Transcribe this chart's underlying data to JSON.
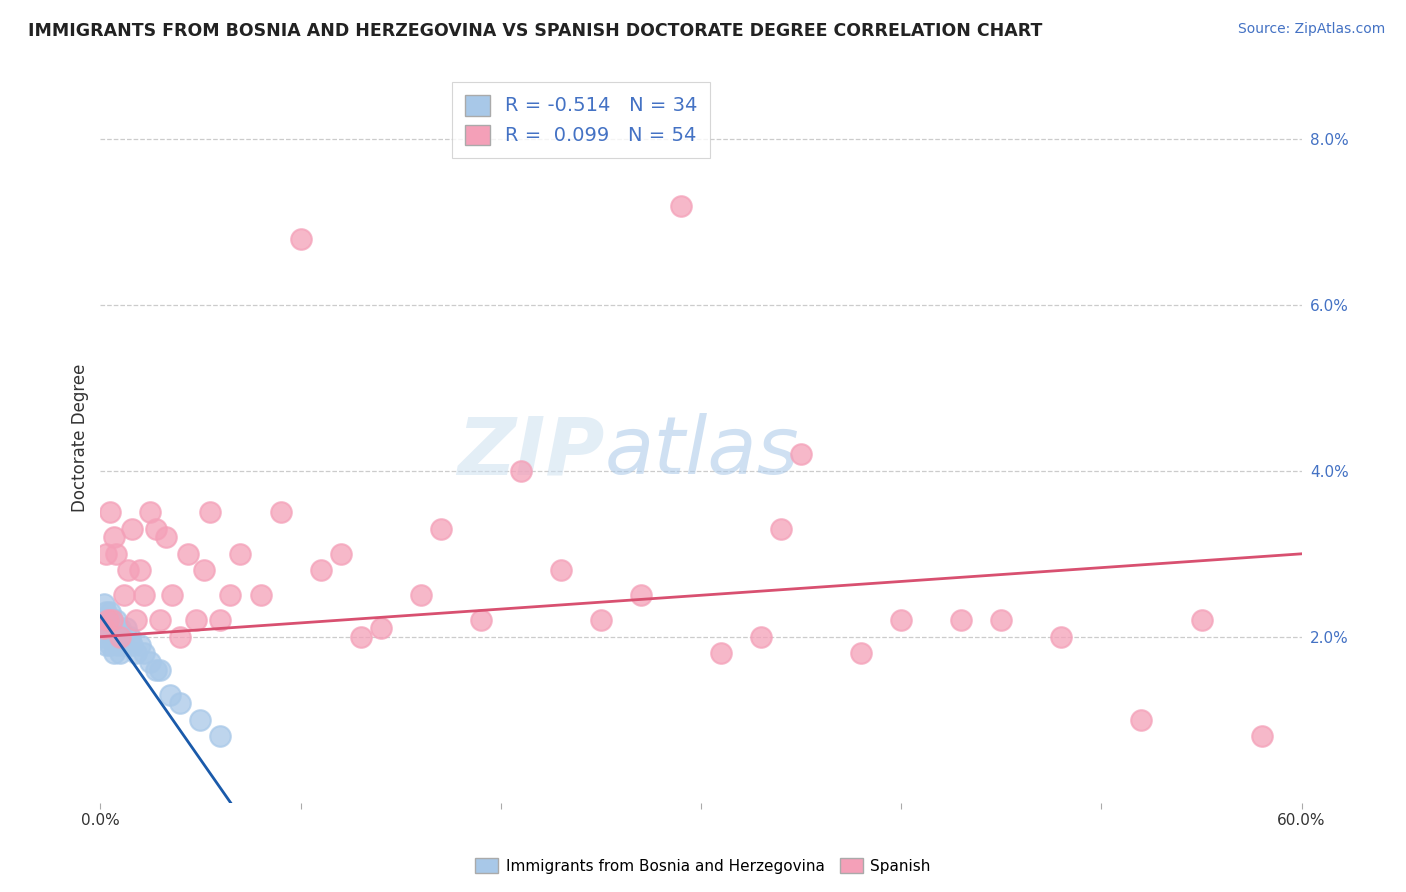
{
  "title": "IMMIGRANTS FROM BOSNIA AND HERZEGOVINA VS SPANISH DOCTORATE DEGREE CORRELATION CHART",
  "source": "Source: ZipAtlas.com",
  "ylabel": "Doctorate Degree",
  "xlim": [
    0.0,
    0.6
  ],
  "ylim": [
    0.0,
    0.088
  ],
  "color_blue": "#a8c8e8",
  "color_pink": "#f4a0b8",
  "line_blue": "#1a5aaa",
  "line_pink": "#d85070",
  "legend_r1": "R = -0.514",
  "legend_n1": "N = 34",
  "legend_r2": "R =  0.099",
  "legend_n2": "N = 54",
  "watermark_zip": "ZIP",
  "watermark_atlas": "atlas",
  "blue_x": [
    0.001,
    0.002,
    0.002,
    0.003,
    0.003,
    0.004,
    0.004,
    0.005,
    0.005,
    0.006,
    0.006,
    0.007,
    0.007,
    0.008,
    0.008,
    0.009,
    0.009,
    0.01,
    0.01,
    0.011,
    0.012,
    0.013,
    0.015,
    0.016,
    0.018,
    0.02,
    0.022,
    0.025,
    0.028,
    0.03,
    0.035,
    0.04,
    0.05,
    0.06
  ],
  "blue_y": [
    0.022,
    0.024,
    0.02,
    0.023,
    0.019,
    0.022,
    0.021,
    0.023,
    0.019,
    0.022,
    0.02,
    0.021,
    0.018,
    0.022,
    0.02,
    0.021,
    0.019,
    0.021,
    0.018,
    0.02,
    0.019,
    0.021,
    0.02,
    0.019,
    0.018,
    0.019,
    0.018,
    0.017,
    0.016,
    0.016,
    0.013,
    0.012,
    0.01,
    0.008
  ],
  "pink_x": [
    0.002,
    0.003,
    0.004,
    0.005,
    0.006,
    0.007,
    0.008,
    0.01,
    0.012,
    0.014,
    0.016,
    0.018,
    0.02,
    0.022,
    0.025,
    0.028,
    0.03,
    0.033,
    0.036,
    0.04,
    0.044,
    0.048,
    0.052,
    0.055,
    0.06,
    0.065,
    0.07,
    0.08,
    0.09,
    0.1,
    0.11,
    0.12,
    0.13,
    0.14,
    0.16,
    0.17,
    0.19,
    0.21,
    0.23,
    0.25,
    0.27,
    0.29,
    0.31,
    0.33,
    0.34,
    0.35,
    0.38,
    0.4,
    0.43,
    0.45,
    0.48,
    0.52,
    0.55,
    0.58
  ],
  "pink_y": [
    0.021,
    0.03,
    0.022,
    0.035,
    0.022,
    0.032,
    0.03,
    0.02,
    0.025,
    0.028,
    0.033,
    0.022,
    0.028,
    0.025,
    0.035,
    0.033,
    0.022,
    0.032,
    0.025,
    0.02,
    0.03,
    0.022,
    0.028,
    0.035,
    0.022,
    0.025,
    0.03,
    0.025,
    0.035,
    0.068,
    0.028,
    0.03,
    0.02,
    0.021,
    0.025,
    0.033,
    0.022,
    0.04,
    0.028,
    0.022,
    0.025,
    0.072,
    0.018,
    0.02,
    0.033,
    0.042,
    0.018,
    0.022,
    0.022,
    0.022,
    0.02,
    0.01,
    0.022,
    0.008
  ],
  "blue_line_x": [
    0.0,
    0.065
  ],
  "blue_line_y": [
    0.0225,
    0.0
  ],
  "pink_line_x": [
    0.0,
    0.6
  ],
  "pink_line_y": [
    0.02,
    0.03
  ],
  "background_color": "#ffffff"
}
